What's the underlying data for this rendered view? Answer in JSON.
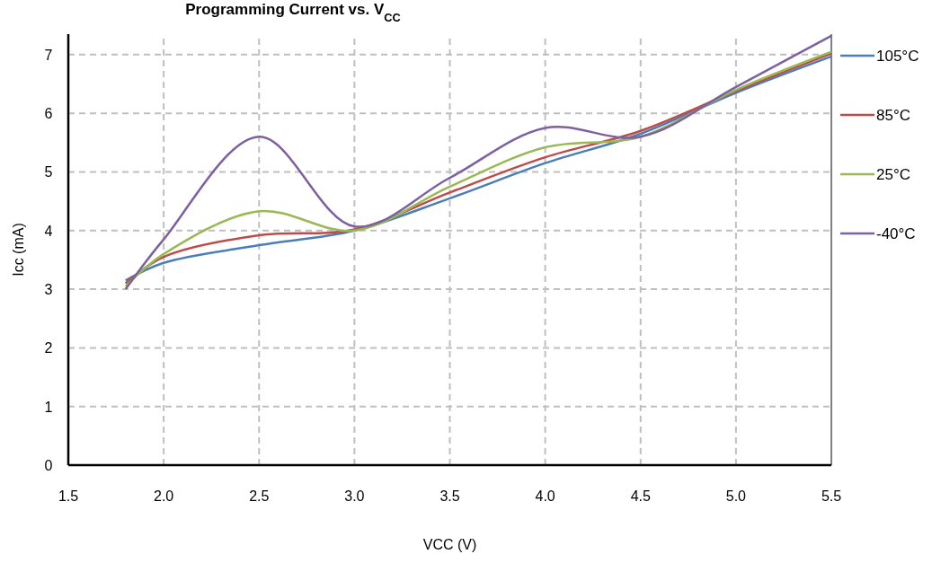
{
  "chart_data": {
    "type": "line",
    "title": "Programming Current vs. V$_{CC}$",
    "xlabel": "VCC (V)",
    "ylabel": "Icc  (mA)",
    "x": [
      1.8,
      2.0,
      2.5,
      3.0,
      3.5,
      4.0,
      4.5,
      5.0,
      5.5
    ],
    "series": [
      {
        "name": "105°C",
        "color": "#4a7ebb",
        "values": [
          3.15,
          3.45,
          3.75,
          4.0,
          4.55,
          5.15,
          5.65,
          6.35,
          6.97
        ]
      },
      {
        "name": "85°C",
        "color": "#be4b48",
        "values": [
          3.1,
          3.55,
          3.92,
          4.02,
          4.65,
          5.25,
          5.7,
          6.38,
          7.02
        ]
      },
      {
        "name": "25°C",
        "color": "#98b954",
        "values": [
          3.05,
          3.6,
          4.33,
          4.0,
          4.75,
          5.42,
          5.6,
          6.4,
          7.05
        ]
      },
      {
        "name": "-40°C",
        "color": "#7d60a0",
        "values": [
          3.0,
          3.85,
          5.6,
          4.07,
          4.9,
          5.75,
          5.6,
          6.45,
          7.32
        ]
      }
    ],
    "xlim": [
      1.5,
      5.5
    ],
    "xticks": [
      {
        "value": 1.5,
        "label": "1.5"
      },
      {
        "value": 2,
        "label": "2.0"
      },
      {
        "value": 2.5,
        "label": "2.5"
      },
      {
        "value": 3,
        "label": "3.0"
      },
      {
        "value": 3.5,
        "label": "3.5"
      },
      {
        "value": 4,
        "label": "4.0"
      },
      {
        "value": 4.5,
        "label": "4.5"
      },
      {
        "value": 5,
        "label": "5.0"
      },
      {
        "value": 5.5,
        "label": "5.5"
      }
    ],
    "ylim": [
      0,
      7.35
    ],
    "yticks": [
      0,
      1,
      2,
      3,
      4,
      5,
      6,
      7
    ],
    "grid": true,
    "legend": "right",
    "marker": "none",
    "line_style": "solid"
  }
}
